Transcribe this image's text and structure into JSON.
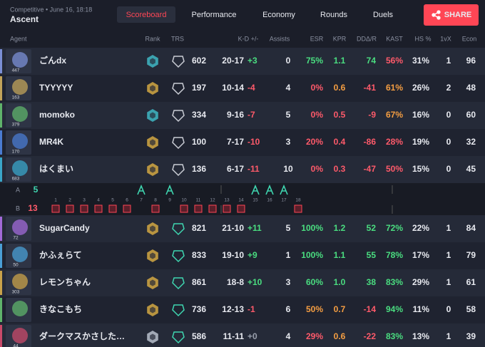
{
  "header": {
    "match_info": "Competitive • June 16, 18:18",
    "map": "Ascent",
    "tabs": [
      "Scoreboard",
      "Performance",
      "Economy",
      "Rounds",
      "Duels"
    ],
    "share": "SHARE"
  },
  "table": {
    "columns": [
      "Agent",
      "Rank",
      "TRS",
      "K-D +/-",
      "Assists",
      "ESR",
      "KPR",
      "DDΔ/R",
      "KAST",
      "HS %",
      "1vX",
      "Econ"
    ],
    "team_a": {
      "label": "A",
      "score": 5,
      "won_rounds": [
        7,
        9,
        15,
        16,
        17
      ],
      "players": [
        {
          "name": "ごんdx",
          "level": 447,
          "trs": 602,
          "kd": "20-17",
          "diff": "+3",
          "assists": 0,
          "esr": "75%",
          "kpr": "1.1",
          "dda": 74,
          "kast": "56%",
          "hs": "31%",
          "clutch": 1,
          "econ": 96
        },
        {
          "name": "TYYYYY",
          "level": 163,
          "trs": 197,
          "kd": "10-14",
          "diff": "-4",
          "assists": 4,
          "esr": "0%",
          "kpr": "0.6",
          "dda": -41,
          "kast": "61%",
          "hs": "26%",
          "clutch": 2,
          "econ": 48
        },
        {
          "name": "momoko",
          "level": 379,
          "trs": 334,
          "kd": "9-16",
          "diff": "-7",
          "assists": 5,
          "esr": "0%",
          "kpr": "0.5",
          "dda": -9,
          "kast": "67%",
          "hs": "16%",
          "clutch": 0,
          "econ": 60
        },
        {
          "name": "MR4K",
          "level": 170,
          "trs": 100,
          "kd": "7-17",
          "diff": "-10",
          "assists": 3,
          "esr": "20%",
          "kpr": "0.4",
          "dda": -86,
          "kast": "28%",
          "hs": "19%",
          "clutch": 0,
          "econ": 32
        },
        {
          "name": "はくまい",
          "level": 683,
          "trs": 136,
          "kd": "6-17",
          "diff": "-11",
          "assists": 10,
          "esr": "0%",
          "kpr": "0.3",
          "dda": -47,
          "kast": "50%",
          "hs": "15%",
          "clutch": 0,
          "econ": 45
        }
      ]
    },
    "team_b": {
      "label": "B",
      "score": 13,
      "won_rounds": [
        1,
        2,
        3,
        4,
        5,
        6,
        8,
        10,
        11,
        12,
        13,
        14,
        18
      ],
      "players": [
        {
          "name": "SugarCandy",
          "level": 72,
          "trs": 821,
          "kd": "21-10",
          "diff": "+11",
          "assists": 5,
          "esr": "100%",
          "kpr": "1.2",
          "dda": 52,
          "kast": "72%",
          "hs": "22%",
          "clutch": 1,
          "econ": 84
        },
        {
          "name": "かふぇらて",
          "level": 50,
          "trs": 833,
          "kd": "19-10",
          "diff": "+9",
          "assists": 1,
          "esr": "100%",
          "kpr": "1.1",
          "dda": 55,
          "kast": "78%",
          "hs": "17%",
          "clutch": 1,
          "econ": 79
        },
        {
          "name": "レモンちゃん",
          "level": 303,
          "trs": 861,
          "kd": "18-8",
          "diff": "+10",
          "assists": 3,
          "esr": "60%",
          "kpr": "1.0",
          "dda": 38,
          "kast": "83%",
          "hs": "29%",
          "clutch": 1,
          "econ": 61
        },
        {
          "name": "きなこもち",
          "trs": 736,
          "kd": "12-13",
          "diff": "-1",
          "assists": 6,
          "esr": "50%",
          "kpr": "0.7",
          "dda": -14,
          "kast": "94%",
          "hs": "11%",
          "clutch": 0,
          "econ": 58
        },
        {
          "name": "ダークマスかさした…",
          "level": 44,
          "trs": 586,
          "kd": "11-11",
          "diff": "+0",
          "assists": 4,
          "esr": "29%",
          "kpr": "0.6",
          "dda": -22,
          "kast": "83%",
          "hs": "13%",
          "clutch": 1,
          "econ": 39
        }
      ]
    }
  },
  "rounds": [
    1,
    2,
    3,
    4,
    5,
    6,
    7,
    8,
    9,
    10,
    11,
    12,
    13,
    14,
    15,
    16,
    17,
    18
  ]
}
